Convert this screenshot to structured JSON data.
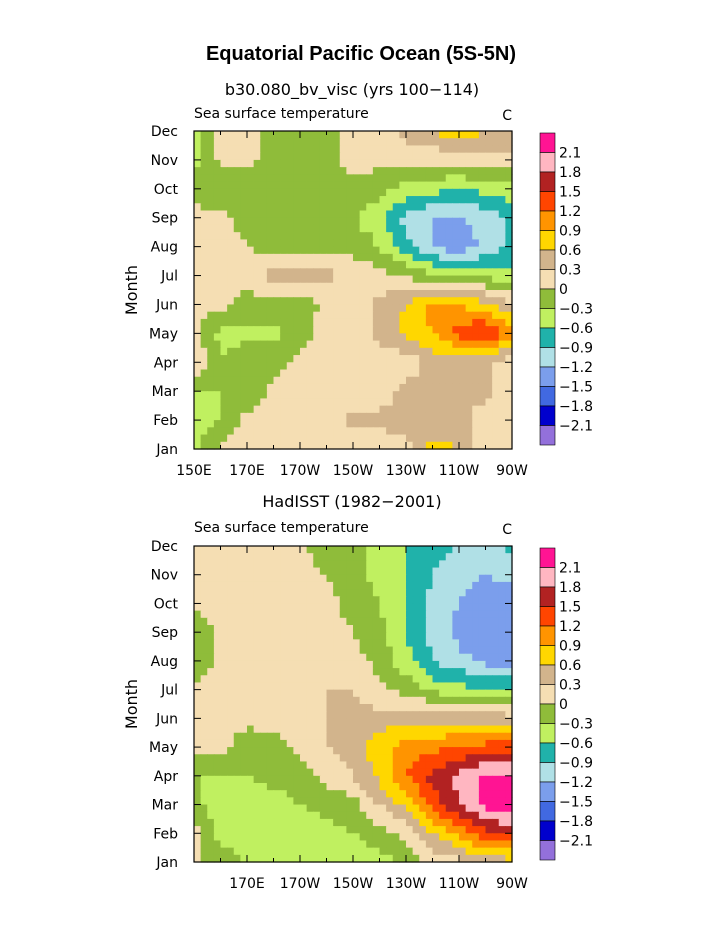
{
  "figure": {
    "title": "Equatorial Pacific Ocean (5S-5N)"
  },
  "colorbar_levels": [
    "2.1",
    "1.8",
    "1.5",
    "1.2",
    "0.9",
    "0.6",
    "0.3",
    "0",
    "−0.3",
    "−0.6",
    "−0.9",
    "−1.2",
    "−1.5",
    "−1.8",
    "−2.1"
  ],
  "colorbar_colors": [
    "#ff1493",
    "#ffb6c1",
    "#b22222",
    "#ff4500",
    "#ff9400",
    "#ffd700",
    "#d2b48c",
    "#f5deb3",
    "#8fbc3a",
    "#c0f060",
    "#20b2aa",
    "#b0e0e6",
    "#7b9eec",
    "#4169e1",
    "#0000cd",
    "#9370db"
  ],
  "chart_data": [
    {
      "type": "heatmap",
      "title": "b30.080_bv_visc (yrs 100−114)",
      "subtitle_left": "Sea surface temperature",
      "subtitle_right": "C",
      "ylabel": "Month",
      "yticks": [
        "Jan",
        "Feb",
        "Mar",
        "Apr",
        "May",
        "Jun",
        "Jul",
        "Aug",
        "Sep",
        "Oct",
        "Nov",
        "Dec"
      ],
      "xticks": [
        "150E",
        "170E",
        "170W",
        "150W",
        "130W",
        "110W",
        "90W"
      ],
      "xlim": [
        150,
        270
      ],
      "ylim": [
        0,
        11
      ],
      "x_step": 10,
      "x": [
        150,
        160,
        170,
        180,
        190,
        200,
        210,
        220,
        230,
        240,
        250,
        260,
        270
      ],
      "values": [
        [
          -0.4,
          0.1,
          0.1,
          0.1,
          0.1,
          0.1,
          0.1,
          0.1,
          0.2,
          0.7,
          0.6,
          0.1,
          0.1
        ],
        [
          -0.4,
          -0.3,
          0.1,
          0.1,
          0.1,
          0.1,
          0.4,
          0.4,
          0.4,
          0.4,
          0.4,
          0.1,
          0.1
        ],
        [
          -0.3,
          -0.3,
          -0.3,
          0.1,
          0.1,
          0.1,
          0.1,
          0.1,
          0.4,
          0.4,
          0.4,
          0.4,
          0.1
        ],
        [
          0.4,
          -0.3,
          -0.1,
          -0.1,
          0.1,
          0.1,
          0.1,
          0.1,
          0.1,
          0.4,
          0.4,
          0.4,
          0.1
        ],
        [
          0.1,
          -0.4,
          -0.4,
          -0.4,
          -0.1,
          0.1,
          0.1,
          0.4,
          0.7,
          0.9,
          1.3,
          1.6,
          1.0
        ],
        [
          0.1,
          0.1,
          -0.1,
          -0.1,
          -0.2,
          0.1,
          0.1,
          0.4,
          0.6,
          1.0,
          0.9,
          0.7,
          0.3
        ],
        [
          0.1,
          0.1,
          0.1,
          0.4,
          0.4,
          0.4,
          0.2,
          0.1,
          0.0,
          -0.3,
          -0.4,
          -0.4,
          -0.5
        ],
        [
          0.1,
          0.1,
          0.0,
          -0.1,
          -0.1,
          -0.1,
          -0.1,
          -0.3,
          -0.8,
          -1.2,
          -1.4,
          -1.1,
          -0.8
        ],
        [
          0.1,
          0.1,
          -0.1,
          -0.3,
          -0.3,
          -0.3,
          -0.3,
          -0.5,
          -1.0,
          -1.2,
          -1.2,
          -1.1,
          -0.8
        ],
        [
          -0.1,
          -0.3,
          -0.3,
          -0.2,
          -0.2,
          -0.2,
          -0.1,
          -0.2,
          -0.4,
          -0.5,
          -0.6,
          -0.5,
          -0.4
        ],
        [
          -0.4,
          0.1,
          0.1,
          -0.1,
          -0.2,
          -0.1,
          0.1,
          0.1,
          0.1,
          0.1,
          0.1,
          0.2,
          0.2
        ],
        [
          -0.4,
          0.1,
          0.1,
          -0.1,
          -0.1,
          -0.1,
          0.1,
          0.2,
          0.4,
          0.6,
          0.8,
          0.6,
          0.6
        ]
      ]
    },
    {
      "type": "heatmap",
      "title": "HadISST (1982−2001)",
      "subtitle_left": "Sea surface temperature",
      "subtitle_right": "C",
      "ylabel": "Month",
      "yticks": [
        "Jan",
        "Feb",
        "Mar",
        "Apr",
        "May",
        "Jun",
        "Jul",
        "Aug",
        "Sep",
        "Oct",
        "Nov",
        "Dec"
      ],
      "xticks": [
        "170E",
        "170W",
        "150W",
        "130W",
        "110W",
        "90W"
      ],
      "xlim": [
        150,
        270
      ],
      "ylim": [
        0,
        11
      ],
      "x_step": 10,
      "x": [
        150,
        160,
        170,
        180,
        190,
        200,
        210,
        220,
        230,
        240,
        250,
        260,
        270
      ],
      "values": [
        [
          0.1,
          -0.2,
          -0.3,
          -0.5,
          -0.5,
          -0.5,
          -0.5,
          -0.4,
          -0.3,
          0.1,
          0.2,
          0.4,
          0.5
        ],
        [
          0.1,
          -0.4,
          -0.4,
          -0.5,
          -0.5,
          -0.4,
          -0.3,
          -0.1,
          0.1,
          0.6,
          1.0,
          1.4,
          1.6
        ],
        [
          -0.2,
          -0.5,
          -0.5,
          -0.4,
          -0.3,
          -0.2,
          -0.1,
          0.3,
          0.7,
          1.3,
          1.8,
          2.2,
          2.3
        ],
        [
          -0.3,
          -0.3,
          -0.3,
          -0.2,
          -0.2,
          0.1,
          0.3,
          0.7,
          1.2,
          1.6,
          1.9,
          2.2,
          2.1
        ],
        [
          0.1,
          0.1,
          -0.2,
          -0.1,
          0.1,
          0.3,
          0.4,
          0.8,
          1.0,
          1.1,
          1.2,
          1.3,
          1.4
        ],
        [
          0.1,
          0.1,
          0.1,
          0.1,
          0.1,
          0.3,
          0.4,
          0.4,
          0.5,
          0.5,
          0.5,
          0.5,
          0.4
        ],
        [
          0.1,
          0.1,
          0.1,
          0.1,
          0.1,
          0.3,
          0.3,
          0.1,
          -0.1,
          -0.4,
          -0.5,
          -0.6,
          -0.6
        ],
        [
          -0.3,
          0.1,
          0.1,
          0.1,
          0.1,
          0.1,
          0.1,
          -0.1,
          -0.5,
          -0.9,
          -1.1,
          -1.3,
          -1.3
        ],
        [
          -0.3,
          0.1,
          0.1,
          0.1,
          0.1,
          0.1,
          0.0,
          -0.2,
          -0.6,
          -1.0,
          -1.3,
          -1.5,
          -1.5
        ],
        [
          0.1,
          0.1,
          0.1,
          0.1,
          0.1,
          0.1,
          -0.1,
          -0.3,
          -0.6,
          -1.0,
          -1.2,
          -1.4,
          -1.4
        ],
        [
          0.1,
          0.1,
          0.1,
          0.1,
          0.1,
          0.0,
          -0.2,
          -0.4,
          -0.6,
          -0.9,
          -1.1,
          -1.2,
          -1.1
        ],
        [
          0.1,
          0.1,
          0.1,
          0.1,
          0.1,
          -0.2,
          -0.3,
          -0.3,
          -0.6,
          -0.8,
          -0.9,
          -1.0,
          -0.8
        ]
      ]
    }
  ]
}
